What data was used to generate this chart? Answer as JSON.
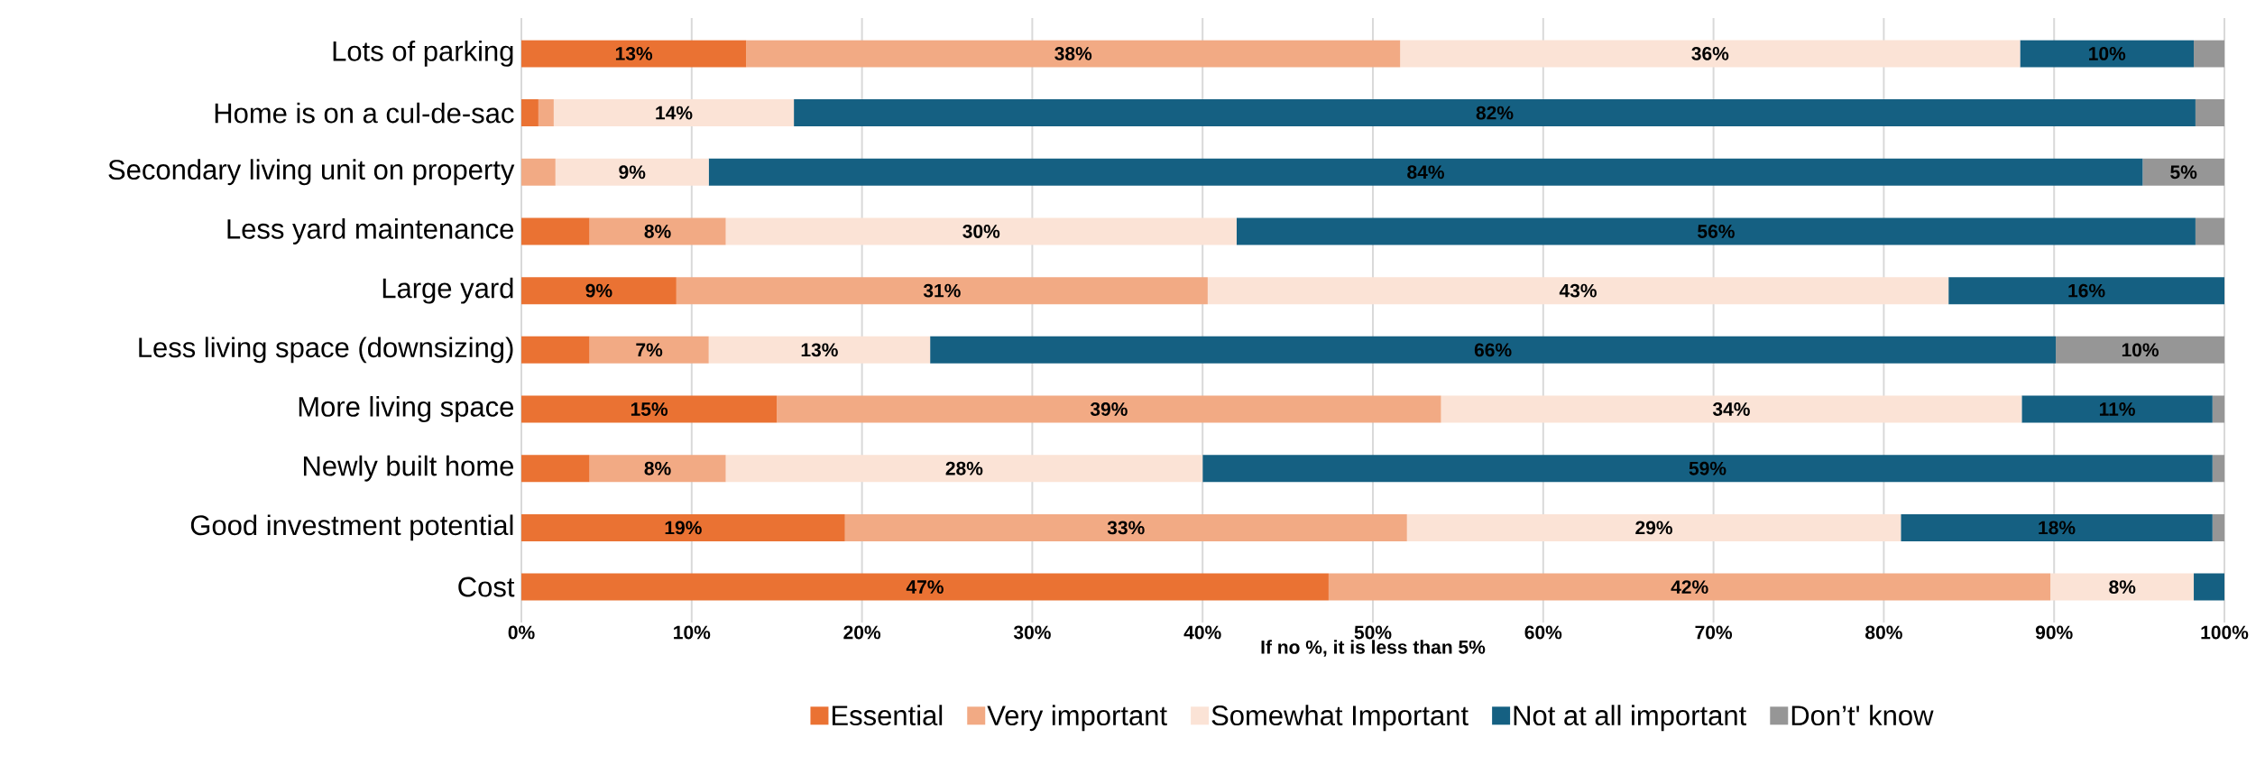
{
  "chart_data": {
    "type": "bar",
    "orientation": "horizontal",
    "stacked": true,
    "categories": [
      "Lots of parking",
      "Home is on a cul-de-sac",
      "Secondary living unit on property",
      "Less yard maintenance",
      "Large yard",
      "Less living space (downsizing)",
      "More living space",
      "Newly built home",
      "Good investment potential",
      "Cost"
    ],
    "series": [
      {
        "name": "Essential",
        "color": "#ea7233",
        "values": [
          13.2,
          1,
          0,
          4,
          9.1,
          4,
          15,
          4,
          19,
          47.4
        ],
        "value_labels": [
          "13%",
          null,
          null,
          null,
          "9%",
          null,
          "15%",
          null,
          "19%",
          "47%"
        ]
      },
      {
        "name": "Very important",
        "color": "#f2aa84",
        "values": [
          38.4,
          0.9,
          2,
          8,
          31.2,
          7,
          39,
          8,
          33,
          42.4
        ],
        "value_labels": [
          "38%",
          null,
          null,
          "8%",
          "31%",
          "7%",
          "39%",
          "8%",
          "33%",
          "42%"
        ]
      },
      {
        "name": "Somewhat Important",
        "color": "#fbe3d6",
        "values": [
          36.4,
          14.1,
          9,
          30,
          43.5,
          13,
          34.1,
          28,
          29,
          8.4
        ],
        "value_labels": [
          "36%",
          "14%",
          "9%",
          "30%",
          "43%",
          "13%",
          "34%",
          "28%",
          "29%",
          "8%"
        ]
      },
      {
        "name": "Not at all important",
        "color": "#156082",
        "values": [
          10.2,
          82.3,
          84.2,
          56.3,
          16.2,
          66.1,
          11.2,
          59.3,
          18.3,
          1.8
        ],
        "value_labels": [
          "10%",
          "82%",
          "84%",
          "56%",
          "16%",
          "66%",
          "11%",
          "59%",
          "18%",
          null
        ]
      },
      {
        "name": "Don’t' know",
        "color": "#969696",
        "values": [
          1.8,
          1.7,
          4.8,
          1.7,
          0,
          9.9,
          0.7,
          0.7,
          0.7,
          0
        ],
        "value_labels": [
          null,
          null,
          "5%",
          null,
          null,
          "10%",
          null,
          null,
          null,
          null
        ]
      }
    ],
    "xlim": [
      0,
      100
    ],
    "xticks": [
      {
        "value": 0,
        "label": "0%"
      },
      {
        "value": 10,
        "label": "10%"
      },
      {
        "value": 20,
        "label": "20%"
      },
      {
        "value": 30,
        "label": "30%"
      },
      {
        "value": 40,
        "label": "40%"
      },
      {
        "value": 50,
        "label": "50%"
      },
      {
        "value": 60,
        "label": "60%"
      },
      {
        "value": 70,
        "label": "70%"
      },
      {
        "value": 80,
        "label": "80%"
      },
      {
        "value": 90,
        "label": "90%"
      },
      {
        "value": 100,
        "label": "100%"
      }
    ],
    "xlabel": "If no %, it is less than 5%",
    "grid": "x",
    "legend": "bottom"
  }
}
